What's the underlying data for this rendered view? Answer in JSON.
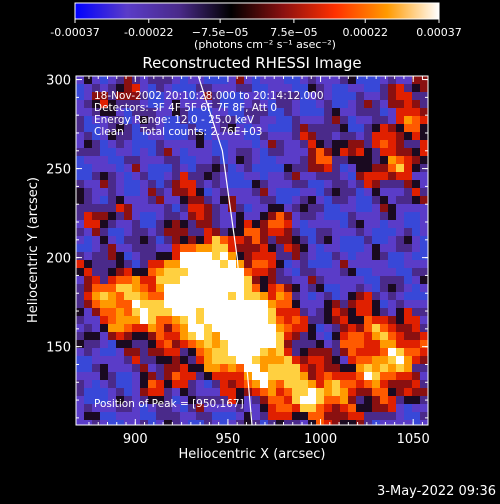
{
  "colorbar": {
    "ticks": [
      "-0.00037",
      "-0.00022",
      "−7.5e−05",
      "7.5e−05",
      "0.00022",
      "0.00037"
    ],
    "tick_values": [
      -0.00037,
      -0.00022,
      -7.5e-05,
      7.5e-05,
      0.00022,
      0.00037
    ],
    "range": [
      -0.00037,
      0.00037
    ],
    "unit_label": "(photons cm⁻² s⁻¹ asec⁻²)"
  },
  "chart_data": {
    "type": "heatmap",
    "title": "Reconstructed RHESSI Image",
    "xlabel": "Heliocentric X (arcsec)",
    "ylabel": "Heliocentric Y (arcsec)",
    "xlim": [
      868,
      1058
    ],
    "ylim": [
      106,
      302
    ],
    "x_ticks": [
      900,
      950,
      1000,
      1050
    ],
    "y_ticks": [
      150,
      200,
      250,
      300
    ],
    "annotations": [
      "18-Nov-2002 20:10:28.000 to 20:14:12.000",
      "Detectors: 3F 4F 5F 6F 7F 8F, Att 0",
      "Energy Range: 12.0 - 25.0 keV",
      "Clean     Total counts: 2.76E+03"
    ],
    "peak_label": "Position of Peak = [950,167]",
    "peak": [
      950,
      167
    ],
    "limb_curve": [
      [
        934,
        302
      ],
      [
        947,
        260
      ],
      [
        955,
        200
      ],
      [
        963,
        106
      ]
    ],
    "colormap": [
      "#0000ff",
      "#5a3cc8",
      "#4a2a8a",
      "#000000",
      "#8a1010",
      "#ff3000",
      "#ff9a00",
      "#ffffff"
    ]
  },
  "footer": {
    "timestamp": "3-May-2022 09:36"
  }
}
